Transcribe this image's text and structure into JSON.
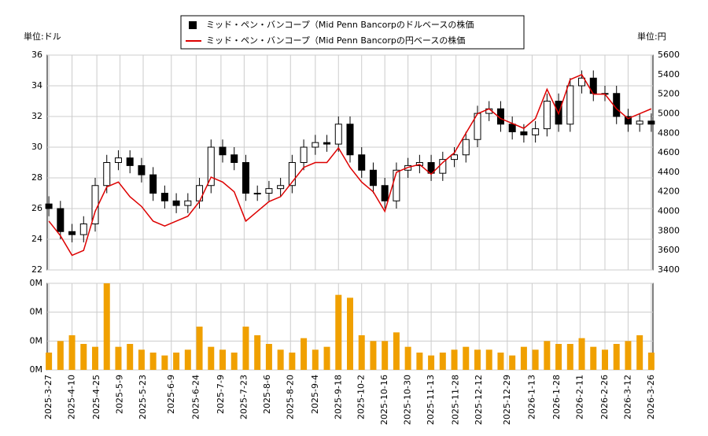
{
  "chart_data": {
    "type": "candlestick",
    "legend": [
      "ミッド・ペン・バンコープ（Mid Penn Bancorpのドルベースの株価",
      "ミッド・ペン・バンコープ（Mid Penn Bancorpの円ベースの株価"
    ],
    "y_unit_label": "単位:ドル",
    "y2_unit_label": "単位:円",
    "x": [
      "2025-3-27",
      "2025-4-3",
      "2025-4-10",
      "2025-4-17",
      "2025-4-24",
      "2025-5-1",
      "2025-5-8",
      "2025-5-15",
      "2025-5-22",
      "2025-5-29",
      "2025-6-5",
      "2025-6-12",
      "2025-6-19",
      "2025-6-26",
      "2025-7-3",
      "2025-7-10",
      "2025-7-17",
      "2025-7-24",
      "2025-7-31",
      "2025-8-7",
      "2025-8-14",
      "2025-8-21",
      "2025-8-28",
      "2025-9-4",
      "2025-9-11",
      "2025-9-18",
      "2025-9-25",
      "2025-10-2",
      "2025-10-9",
      "2025-10-16",
      "2025-10-23",
      "2025-10-30",
      "2025-11-6",
      "2025-11-13",
      "2025-11-20",
      "2025-11-27",
      "2025-12-4",
      "2025-12-11",
      "2025-12-18",
      "2025-12-25",
      "2026-1-1",
      "2026-1-8",
      "2026-1-15",
      "2026-1-22",
      "2026-1-29",
      "2026-2-5",
      "2026-2-12",
      "2026-2-19",
      "2026-2-26",
      "2026-3-5",
      "2026-3-12",
      "2026-3-19",
      "2026-3-26"
    ],
    "open": [
      26.3,
      26.0,
      24.5,
      24.3,
      25.0,
      27.5,
      29.0,
      29.3,
      28.8,
      28.2,
      27.0,
      26.5,
      26.2,
      26.5,
      27.5,
      30.0,
      29.5,
      29.0,
      27.0,
      27.0,
      27.3,
      27.5,
      29.0,
      30.0,
      30.3,
      30.2,
      31.5,
      29.5,
      28.5,
      27.5,
      26.5,
      28.5,
      28.8,
      29.0,
      28.3,
      29.2,
      29.5,
      30.5,
      32.2,
      32.5,
      31.5,
      31.0,
      30.8,
      31.2,
      33.0,
      31.5,
      34.0,
      34.5,
      33.5,
      33.5,
      32.0,
      31.5,
      31.7
    ],
    "high": [
      26.8,
      26.5,
      25.0,
      25.5,
      28.0,
      29.5,
      29.8,
      29.8,
      29.3,
      28.7,
      27.5,
      27.0,
      27.0,
      28.0,
      30.5,
      30.5,
      30.0,
      29.5,
      27.5,
      27.8,
      28.0,
      29.5,
      30.5,
      30.8,
      30.8,
      32.0,
      32.0,
      30.0,
      29.0,
      28.0,
      29.0,
      29.3,
      29.5,
      29.5,
      29.7,
      30.0,
      31.0,
      32.7,
      33.0,
      33.0,
      32.0,
      31.5,
      31.7,
      33.5,
      33.5,
      34.5,
      35.0,
      35.0,
      34.0,
      34.0,
      32.5,
      32.2,
      32.2
    ],
    "low": [
      25.5,
      24.0,
      23.8,
      23.8,
      24.5,
      27.0,
      28.5,
      28.3,
      27.7,
      26.5,
      26.0,
      25.7,
      25.7,
      26.0,
      27.0,
      29.0,
      28.5,
      26.5,
      26.5,
      26.5,
      26.8,
      27.0,
      28.5,
      29.5,
      29.7,
      29.7,
      29.0,
      28.0,
      27.0,
      26.0,
      26.0,
      28.0,
      28.3,
      27.8,
      27.8,
      28.7,
      29.0,
      30.0,
      31.7,
      31.0,
      30.5,
      30.3,
      30.3,
      30.7,
      31.0,
      31.0,
      33.5,
      33.0,
      33.0,
      31.5,
      31.0,
      31.0,
      31.0
    ],
    "close": [
      26.0,
      24.5,
      24.3,
      25.0,
      27.5,
      29.0,
      29.3,
      28.8,
      28.2,
      27.0,
      26.5,
      26.2,
      26.5,
      27.5,
      30.0,
      29.5,
      29.0,
      27.0,
      27.0,
      27.3,
      27.5,
      29.0,
      30.0,
      30.3,
      30.2,
      31.5,
      29.5,
      28.5,
      27.5,
      26.5,
      28.5,
      28.8,
      29.0,
      28.3,
      29.2,
      29.5,
      30.5,
      32.2,
      32.5,
      31.5,
      31.0,
      30.8,
      31.2,
      33.0,
      31.5,
      34.0,
      34.5,
      33.5,
      33.5,
      32.0,
      31.5,
      31.7,
      31.5
    ],
    "yen_close": [
      3900,
      3750,
      3550,
      3600,
      4000,
      4250,
      4300,
      4150,
      4050,
      3900,
      3850,
      3900,
      3950,
      4100,
      4350,
      4300,
      4200,
      3900,
      4000,
      4100,
      4150,
      4300,
      4450,
      4500,
      4500,
      4650,
      4450,
      4300,
      4200,
      4000,
      4400,
      4450,
      4480,
      4380,
      4500,
      4600,
      4800,
      5000,
      5050,
      4950,
      4900,
      4850,
      4950,
      5250,
      5000,
      5350,
      5400,
      5200,
      5200,
      5050,
      4950,
      5000,
      5050
    ],
    "yen_color": "#dd0000",
    "volume": [
      60000,
      100000,
      120000,
      90000,
      80000,
      300000,
      80000,
      90000,
      70000,
      60000,
      50000,
      60000,
      70000,
      150000,
      80000,
      70000,
      60000,
      150000,
      120000,
      90000,
      70000,
      60000,
      110000,
      70000,
      80000,
      260000,
      250000,
      120000,
      100000,
      100000,
      130000,
      80000,
      60000,
      50000,
      60000,
      70000,
      80000,
      70000,
      70000,
      60000,
      50000,
      80000,
      70000,
      100000,
      90000,
      90000,
      110000,
      80000,
      70000,
      90000,
      100000,
      120000,
      60000
    ],
    "volume_color": "#f0a000",
    "xlim": [
      "2025-3-26",
      "2026-3-27"
    ],
    "xticks": [
      "2025-3-27",
      "2025-4-10",
      "2025-4-25",
      "2025-5-9",
      "2025-5-23",
      "2025-6-9",
      "2025-6-24",
      "2025-7-9",
      "2025-7-23",
      "2025-8-6",
      "2025-8-20",
      "2025-9-4",
      "2025-9-18",
      "2025-10-2",
      "2025-10-16",
      "2025-10-30",
      "2025-11-13",
      "2025-11-28",
      "2025-12-12",
      "2025-12-29",
      "2026-1-13",
      "2026-1-28",
      "2026-2-11",
      "2026-2-26",
      "2026-3-12",
      "2026-3-26"
    ],
    "ylim": [
      22,
      36
    ],
    "yticks": [
      22,
      24,
      26,
      28,
      30,
      32,
      34,
      36
    ],
    "y2lim": [
      3400,
      5600
    ],
    "y2ticks": [
      3400,
      3600,
      3800,
      4000,
      4200,
      4400,
      4600,
      4800,
      5000,
      5200,
      5400,
      5600
    ],
    "vlim": [
      0,
      300000
    ],
    "vticks": [
      {
        "value": 0,
        "label": "0M"
      },
      {
        "value": 100000,
        "label": "0M"
      },
      {
        "value": 200000,
        "label": "0M"
      },
      {
        "value": 300000,
        "label": "0M"
      }
    ],
    "grid": true
  }
}
